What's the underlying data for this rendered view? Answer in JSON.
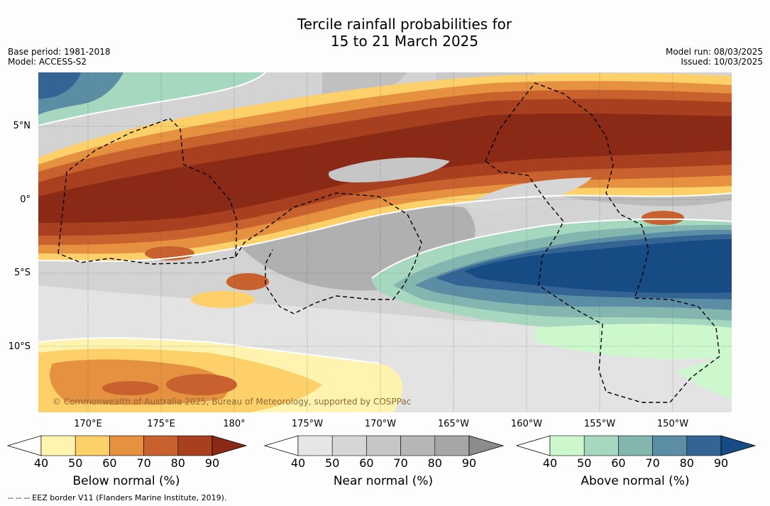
{
  "title_line1": "Tercile rainfall probabilities for",
  "title_line2": "15 to 21 March 2025",
  "meta_left": {
    "base_period": "Base period: 1981-2018",
    "model": "Model: ACCESS-S2"
  },
  "meta_right": {
    "model_run": "Model run: 08/03/2025",
    "issued": "Issued: 10/03/2025"
  },
  "credit": "© Commonwealth of Australia 2025, Bureau of Meteorology, supported by COSPPac",
  "lat_labels": [
    "5°N",
    "0°",
    "5°S",
    "10°S"
  ],
  "lon_labels": [
    "170°E",
    "175°E",
    "180°",
    "175°W",
    "170°W",
    "165°W",
    "160°W",
    "155°W",
    "150°W"
  ],
  "colorbars": [
    {
      "label": "Below normal (%)",
      "ticks": [
        "40",
        "50",
        "60",
        "70",
        "80",
        "90"
      ],
      "colors": [
        "#fff3b0",
        "#fdd06a",
        "#e5913f",
        "#c8612d",
        "#a8401f",
        "#8a2a16"
      ]
    },
    {
      "label": "Near normal (%)",
      "ticks": [
        "40",
        "50",
        "60",
        "70",
        "80",
        "90"
      ],
      "colors": [
        "#e6e6e6",
        "#d6d6d6",
        "#c6c6c6",
        "#b6b6b6",
        "#a6a6a6",
        "#8c8c8c"
      ]
    },
    {
      "label": "Above normal (%)",
      "ticks": [
        "40",
        "50",
        "60",
        "70",
        "80",
        "90"
      ],
      "colors": [
        "#cdf7cd",
        "#a6d8c0",
        "#84b6b0",
        "#5b8ea4",
        "#336494",
        "#174b83"
      ]
    }
  ],
  "footnote": "--  --  -- EEZ border V11 (Flanders Marine Institute, 2019)."
}
